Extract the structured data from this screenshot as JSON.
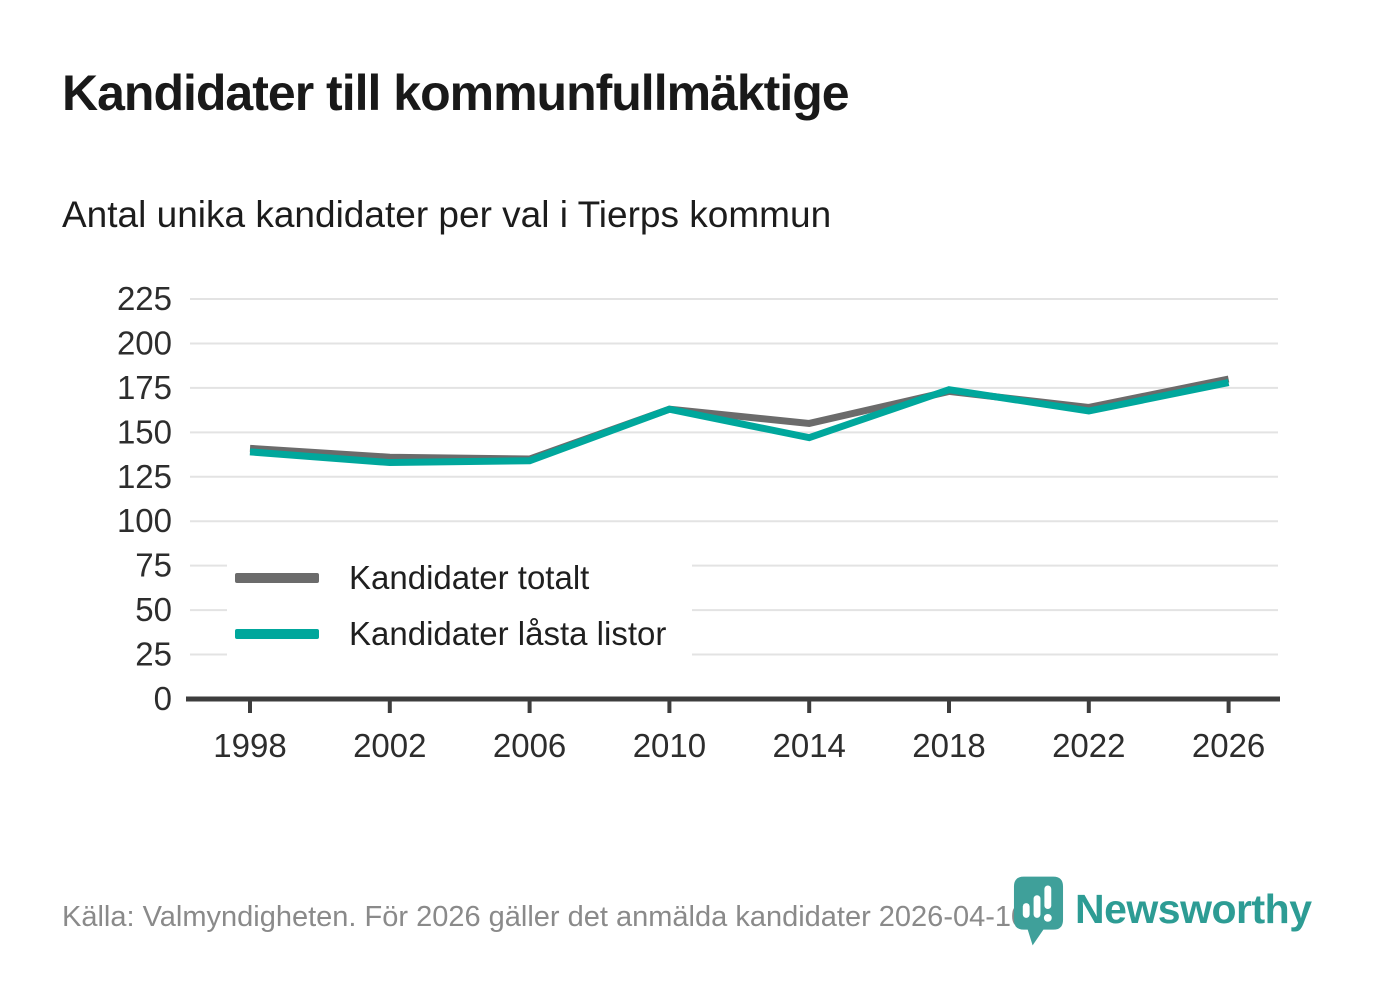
{
  "header": {
    "title": "Kandidater till kommunfullmäktige",
    "subtitle": "Antal unika kandidater per val i Tierps kommun"
  },
  "chart_data": {
    "type": "line",
    "categories": [
      "1998",
      "2002",
      "2006",
      "2010",
      "2014",
      "2018",
      "2022",
      "2026"
    ],
    "series": [
      {
        "name": "Kandidater totalt",
        "color": "#6b6b6b",
        "values": [
          141,
          136,
          135,
          163,
          155,
          173,
          164,
          180
        ]
      },
      {
        "name": "Kandidater låsta listor",
        "color": "#00a79c",
        "values": [
          139,
          133,
          134,
          163,
          147,
          174,
          162,
          178
        ]
      }
    ],
    "title": "Kandidater till kommunfullmäktige",
    "subtitle": "Antal unika kandidater per val i Tierps kommun",
    "xlabel": "",
    "ylabel": "",
    "ylim": [
      0,
      225
    ],
    "ytick_step": 25,
    "grid": true,
    "legend_position": "inside-bottom-left"
  },
  "footer": {
    "source": "Källa: Valmyndigheten. För 2026 gäller det anmälda kandidater 2026-04-10.",
    "brand": "Newsworthy"
  },
  "colors": {
    "series_total": "#6b6b6b",
    "series_locked": "#00a79c",
    "gridline": "#e3e3e3",
    "axis": "#3d3d3d",
    "logo_icon": "#3fa09a",
    "logo_text": "#2d9c94"
  }
}
